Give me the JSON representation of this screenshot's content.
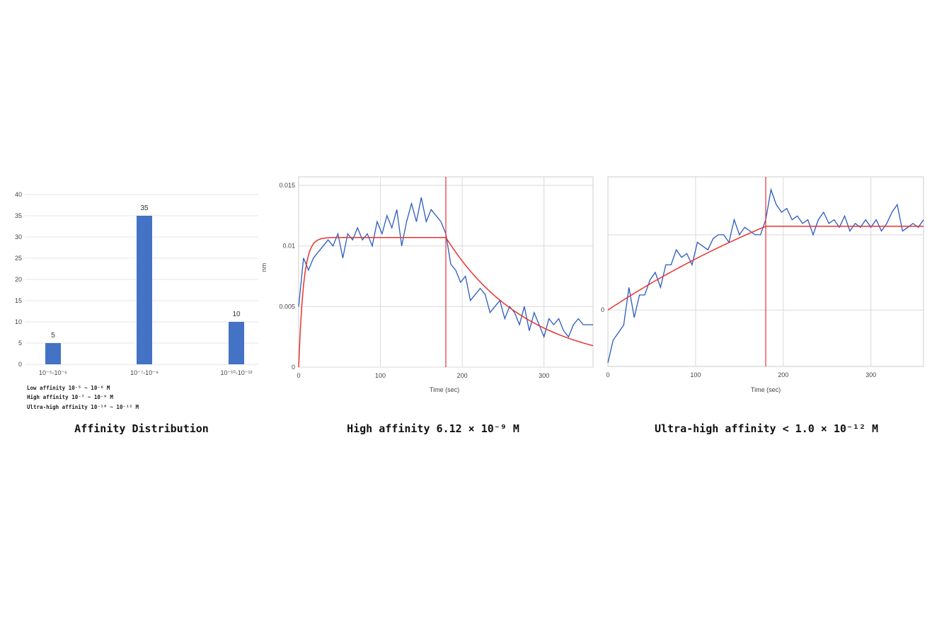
{
  "colors": {
    "bar": "#4472c4",
    "trace": "#2a5bbf",
    "fit": "#e8332f",
    "grid": "#d9d9d9"
  },
  "chart_data": [
    {
      "type": "bar",
      "title": "Affinity Distribution",
      "categories": [
        "10⁻⁵-10⁻⁶",
        "10⁻⁷-10⁻⁹",
        "10⁻¹⁰-10⁻¹²"
      ],
      "values": [
        5,
        35,
        10
      ],
      "data_labels": [
        "5",
        "35",
        "10"
      ],
      "ylim": [
        0,
        40
      ],
      "yticks": [
        "0",
        "5",
        "10",
        "15",
        "20",
        "25",
        "30",
        "35",
        "40"
      ],
      "grid": true,
      "notes": [
        "Low affinity 10⁻⁵ ~ 10⁻⁶ M",
        "High affinity 10⁻⁷ ~ 10⁻⁹ M",
        "Ultra-high affinity  10⁻¹⁰ ~ 10⁻¹² M"
      ]
    },
    {
      "type": "line",
      "title": "High affinity  6.12 × 10⁻⁹ M",
      "xlabel": "Time (sec)",
      "ylabel": "nm",
      "xlim": [
        0,
        360
      ],
      "ylim": [
        0,
        0.0157
      ],
      "xticks": [
        0,
        100,
        200,
        300
      ],
      "yticks": [
        0,
        0.005,
        0.01,
        0.015
      ],
      "ytick_labels": [
        "0",
        "0.005",
        "0.01",
        "0.015"
      ],
      "grid": true,
      "switch_time": 180,
      "series": [
        {
          "x": [
            0,
            6,
            12,
            18,
            24,
            30,
            36,
            42,
            48,
            54,
            60,
            66,
            72,
            78,
            84,
            90,
            96,
            102,
            108,
            114,
            120,
            126,
            132,
            138,
            144,
            150,
            156,
            162,
            168,
            174,
            180,
            186,
            192,
            198,
            204,
            210,
            216,
            222,
            228,
            234,
            240,
            246,
            252,
            258,
            264,
            270,
            276,
            282,
            288,
            294,
            300,
            306,
            312,
            318,
            324,
            330,
            336,
            342,
            348,
            354,
            360
          ],
          "y": [
            0.005,
            0.009,
            0.008,
            0.009,
            0.0095,
            0.01,
            0.0105,
            0.01,
            0.011,
            0.009,
            0.011,
            0.0105,
            0.0115,
            0.0105,
            0.011,
            0.01,
            0.012,
            0.011,
            0.0125,
            0.0115,
            0.013,
            0.01,
            0.012,
            0.0135,
            0.012,
            0.014,
            0.012,
            0.013,
            0.0125,
            0.012,
            0.011,
            0.0085,
            0.008,
            0.007,
            0.0075,
            0.0055,
            0.006,
            0.0065,
            0.006,
            0.0045,
            0.005,
            0.0055,
            0.004,
            0.005,
            0.0045,
            0.0035,
            0.005,
            0.003,
            0.0045,
            0.0035,
            0.0025,
            0.004,
            0.0035,
            0.004,
            0.003,
            0.0025,
            0.0035,
            0.004,
            0.0035,
            0.0035,
            0.0035
          ]
        },
        {
          "fit": {
            "plateau": 0.0107,
            "assoc_tau": 6,
            "dissoc_tau": 100,
            "start_level": 0
          }
        }
      ]
    },
    {
      "type": "line",
      "title": "Ultra-high affinity < 1.0 × 10⁻¹² M",
      "xlabel": "Time (sec)",
      "xlim": [
        0,
        360
      ],
      "ylim": [
        -0.75,
        1.77
      ],
      "xticks": [
        0,
        100,
        200,
        300
      ],
      "yticks": [
        0
      ],
      "ytick_labels": [
        "0"
      ],
      "grid_y": [
        0,
        1
      ],
      "grid": true,
      "switch_time": 180,
      "series": [
        {
          "x": [
            0,
            6,
            12,
            18,
            24,
            30,
            36,
            42,
            48,
            54,
            60,
            66,
            72,
            78,
            84,
            90,
            96,
            102,
            108,
            114,
            120,
            126,
            132,
            138,
            144,
            150,
            156,
            162,
            168,
            174,
            180,
            186,
            192,
            198,
            204,
            210,
            216,
            222,
            228,
            234,
            240,
            246,
            252,
            258,
            264,
            270,
            276,
            282,
            288,
            294,
            300,
            306,
            312,
            318,
            324,
            330,
            336,
            342,
            348,
            354,
            360
          ],
          "y": [
            -0.7,
            -0.4,
            -0.3,
            -0.2,
            0.3,
            -0.1,
            0.2,
            0.2,
            0.4,
            0.5,
            0.3,
            0.6,
            0.6,
            0.8,
            0.7,
            0.75,
            0.6,
            0.9,
            0.85,
            0.8,
            0.95,
            1.0,
            1.0,
            0.9,
            1.2,
            1.0,
            1.1,
            1.05,
            1.0,
            1.0,
            1.2,
            1.6,
            1.4,
            1.3,
            1.35,
            1.2,
            1.25,
            1.15,
            1.2,
            1.0,
            1.2,
            1.3,
            1.15,
            1.2,
            1.1,
            1.25,
            1.05,
            1.15,
            1.1,
            1.2,
            1.1,
            1.2,
            1.05,
            1.15,
            1.3,
            1.4,
            1.05,
            1.1,
            1.15,
            1.1,
            1.2
          ]
        },
        {
          "fit": {
            "plateau": 3.07,
            "assoc_tau": 400,
            "dissoc_tau": null,
            "start_level": 0
          }
        }
      ]
    }
  ]
}
